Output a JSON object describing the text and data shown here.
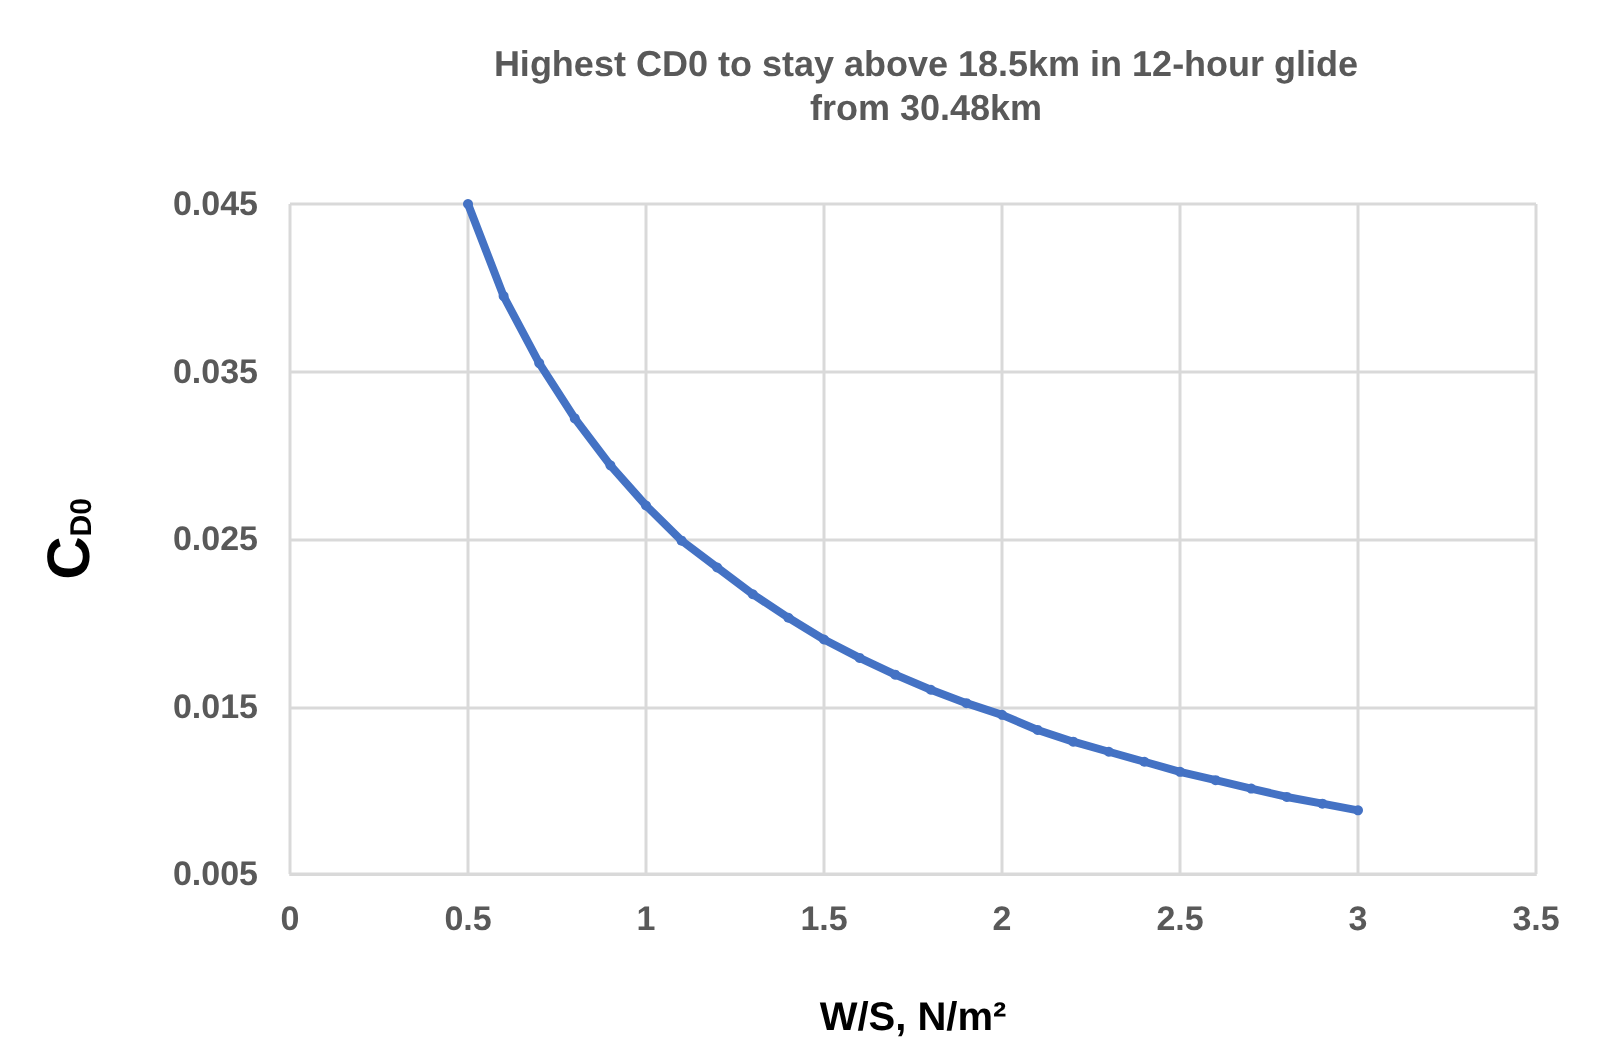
{
  "chart_data": {
    "type": "line",
    "title": "Highest CD0 to stay above 18.5km in 12-hour glide\nfrom 30.48km",
    "xlabel": "W/S, N/m²",
    "ylabel": "C$_{D0}$",
    "x": [
      0.5,
      0.6,
      0.7,
      0.8,
      0.9,
      1.0,
      1.1,
      1.2,
      1.3,
      1.4,
      1.5,
      1.6,
      1.7,
      1.8,
      1.9,
      2.0,
      2.1,
      2.2,
      2.3,
      2.4,
      2.5,
      2.6,
      2.7,
      2.8,
      2.9,
      3.0
    ],
    "series": [
      {
        "color": "#4472c4",
        "values": [
          0.045,
          0.0395,
          0.0355,
          0.0322,
          0.0294,
          0.027,
          0.0249,
          0.0233,
          0.0217,
          0.0203,
          0.019,
          0.0179,
          0.0169,
          0.016,
          0.0152,
          0.0145,
          0.0136,
          0.0129,
          0.0123,
          0.0117,
          0.0111,
          0.0106,
          0.0101,
          0.0096,
          0.0092,
          0.0088
        ]
      }
    ],
    "xlim": [
      0,
      3.5
    ],
    "xticks": [
      0,
      0.5,
      1,
      1.5,
      2,
      2.5,
      3,
      3.5
    ],
    "ylim": [
      0.005,
      0.045
    ],
    "yticks": [
      0.005,
      0.015,
      0.025,
      0.035,
      0.045
    ],
    "grid": true,
    "marker": "circle",
    "line_style": "solid"
  }
}
